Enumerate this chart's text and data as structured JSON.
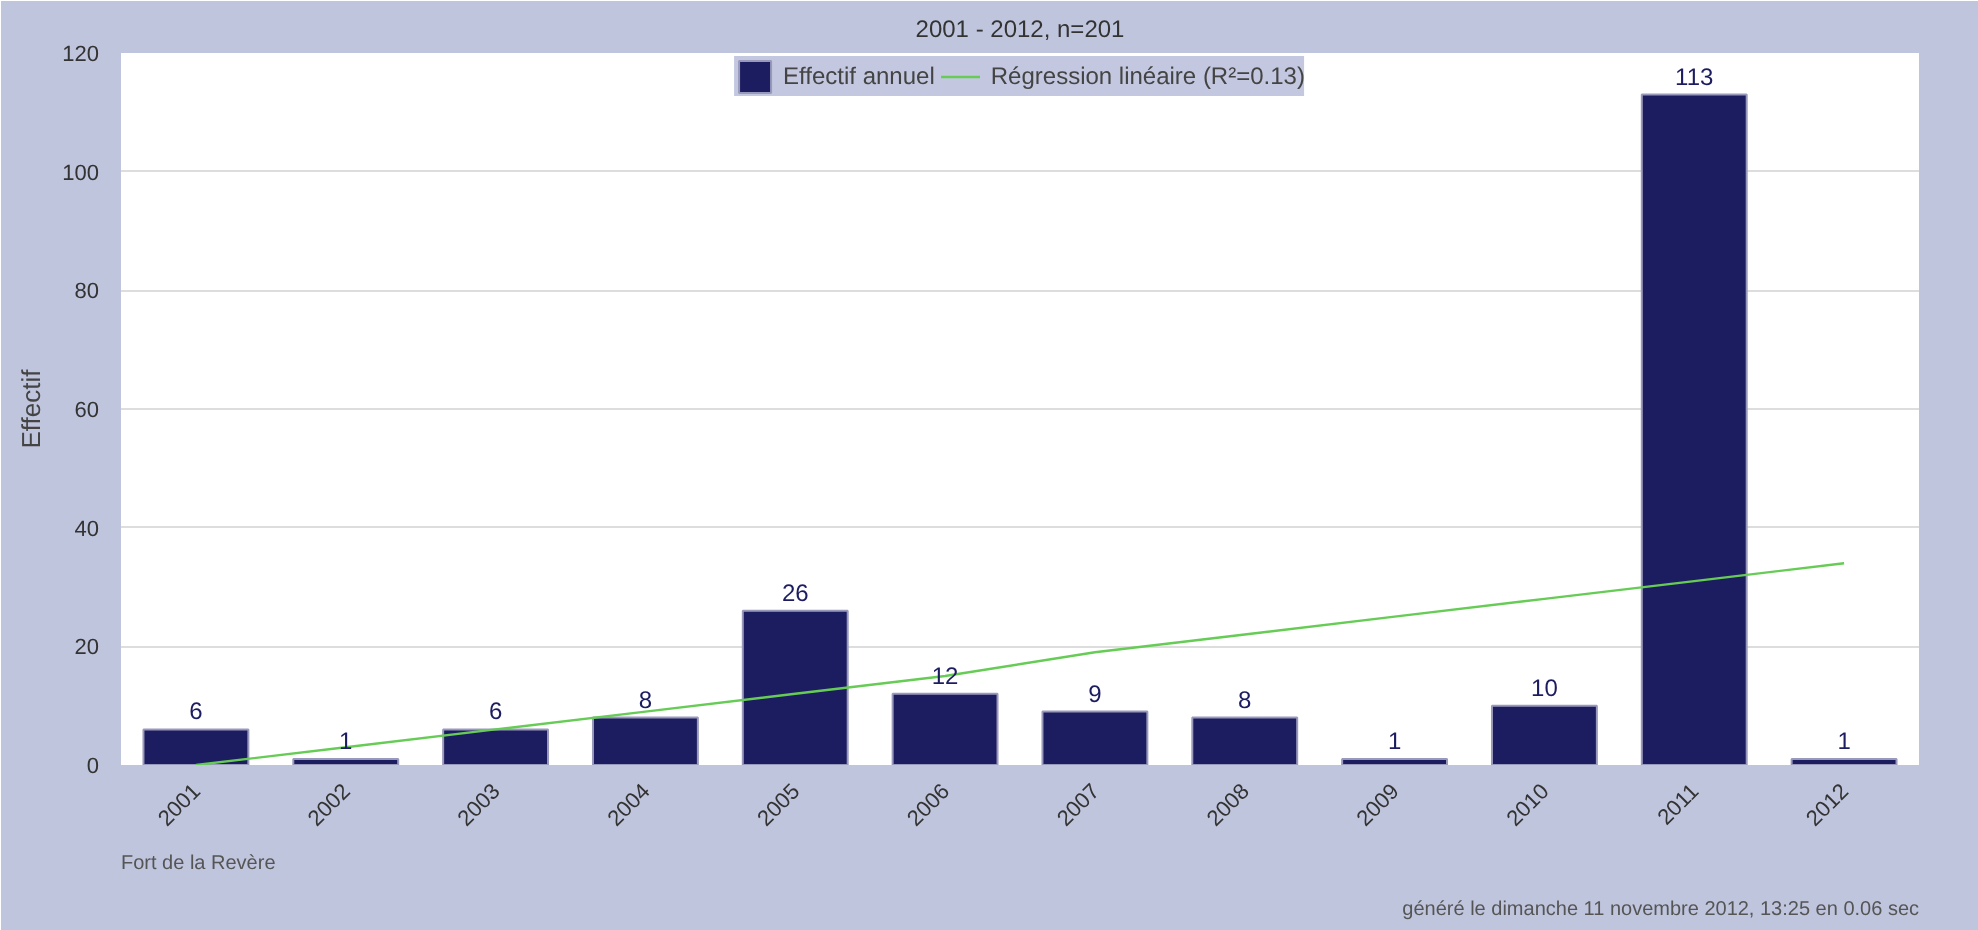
{
  "chart_data": {
    "type": "bar",
    "title": "2001 - 2012, n=201",
    "ylabel": "Effectif",
    "categories": [
      "2001",
      "2002",
      "2003",
      "2004",
      "2005",
      "2006",
      "2007",
      "2008",
      "2009",
      "2010",
      "2011",
      "2012"
    ],
    "series": [
      {
        "name": "Effectif annuel",
        "color": "#1c1c60",
        "values": [
          6,
          1,
          6,
          8,
          26,
          12,
          9,
          8,
          1,
          10,
          113,
          1
        ],
        "value_labels": [
          "6",
          "1",
          "6",
          "8",
          "26",
          "12",
          "9",
          "8",
          "1",
          "10",
          "113",
          "1"
        ]
      },
      {
        "name": "Régression linéaire (R²=0.13)",
        "type": "line",
        "color": "#66cc55",
        "values": [
          0,
          3,
          6,
          9,
          12,
          15,
          19,
          22,
          25,
          28,
          31,
          34
        ]
      }
    ],
    "ylim": [
      0,
      120
    ],
    "yticks": [
      0,
      20,
      40,
      60,
      80,
      100,
      120
    ],
    "grid": "y",
    "legend": "top",
    "annotations": [
      "Fort de la Revère",
      "généré le dimanche 11 novembre 2012, 13:25 en 0.06 sec"
    ]
  }
}
